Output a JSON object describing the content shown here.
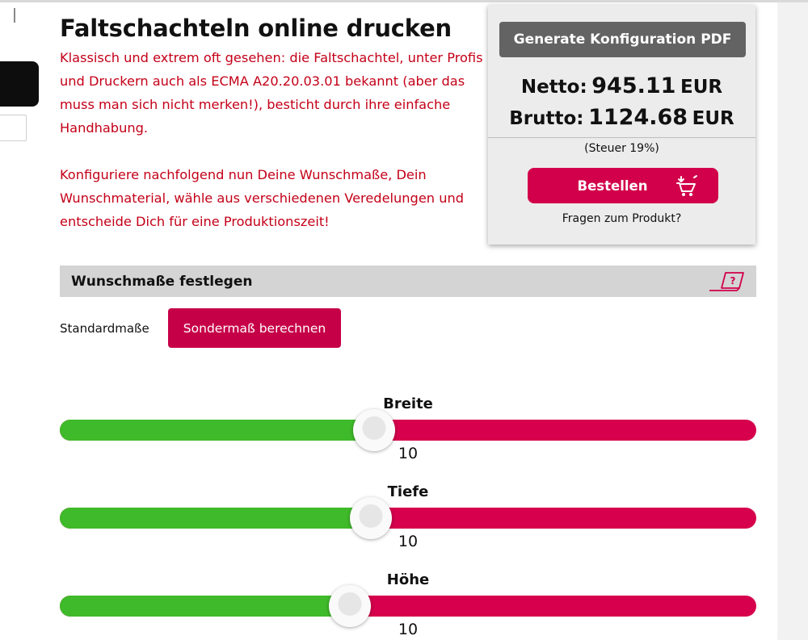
{
  "page": {
    "title": "Faltschachteln online drucken",
    "intro": [
      "Klassisch und extrem oft gesehen: die Faltschachtel, unter Profis und Druckern auch als ECMA A20.20.03.01 bekannt (aber das muss man sich nicht merken!), besticht durch ihre einfache Handhabung.",
      "Konfiguriere nachfolgend nun Deine Wunschmaße, Dein Wunschmaterial, wähle aus verschiedenen Veredelungen und entscheide Dich für eine Produktionszeit!"
    ]
  },
  "price_box": {
    "pdf_button": "Generate Konfiguration PDF",
    "netto_label": "Netto:",
    "netto_value": "945.11",
    "brutto_label": "Brutto:",
    "brutto_value": "1124.68",
    "currency": "EUR",
    "tax_note": "(Steuer 19%)",
    "order_button": "Bestellen",
    "faq_link": "Fragen zum Produkt?"
  },
  "section": {
    "title": "Wunschmaße festlegen",
    "help_icon": "help-laptop-icon"
  },
  "size_mode": {
    "standard_label": "Standardmaße",
    "custom_button": "Sondermaß berechnen"
  },
  "sliders": [
    {
      "name": "Breite",
      "value": "10",
      "position": 0.451
    },
    {
      "name": "Tiefe",
      "value": "10",
      "position": 0.447
    },
    {
      "name": "Höhe",
      "value": "10",
      "position": 0.417
    }
  ],
  "colors": {
    "accent": "#d2004a",
    "intro_text": "#c40018",
    "slider_green": "#3fba2a",
    "slider_red": "#d6004c",
    "pdf_button": "#636363"
  }
}
